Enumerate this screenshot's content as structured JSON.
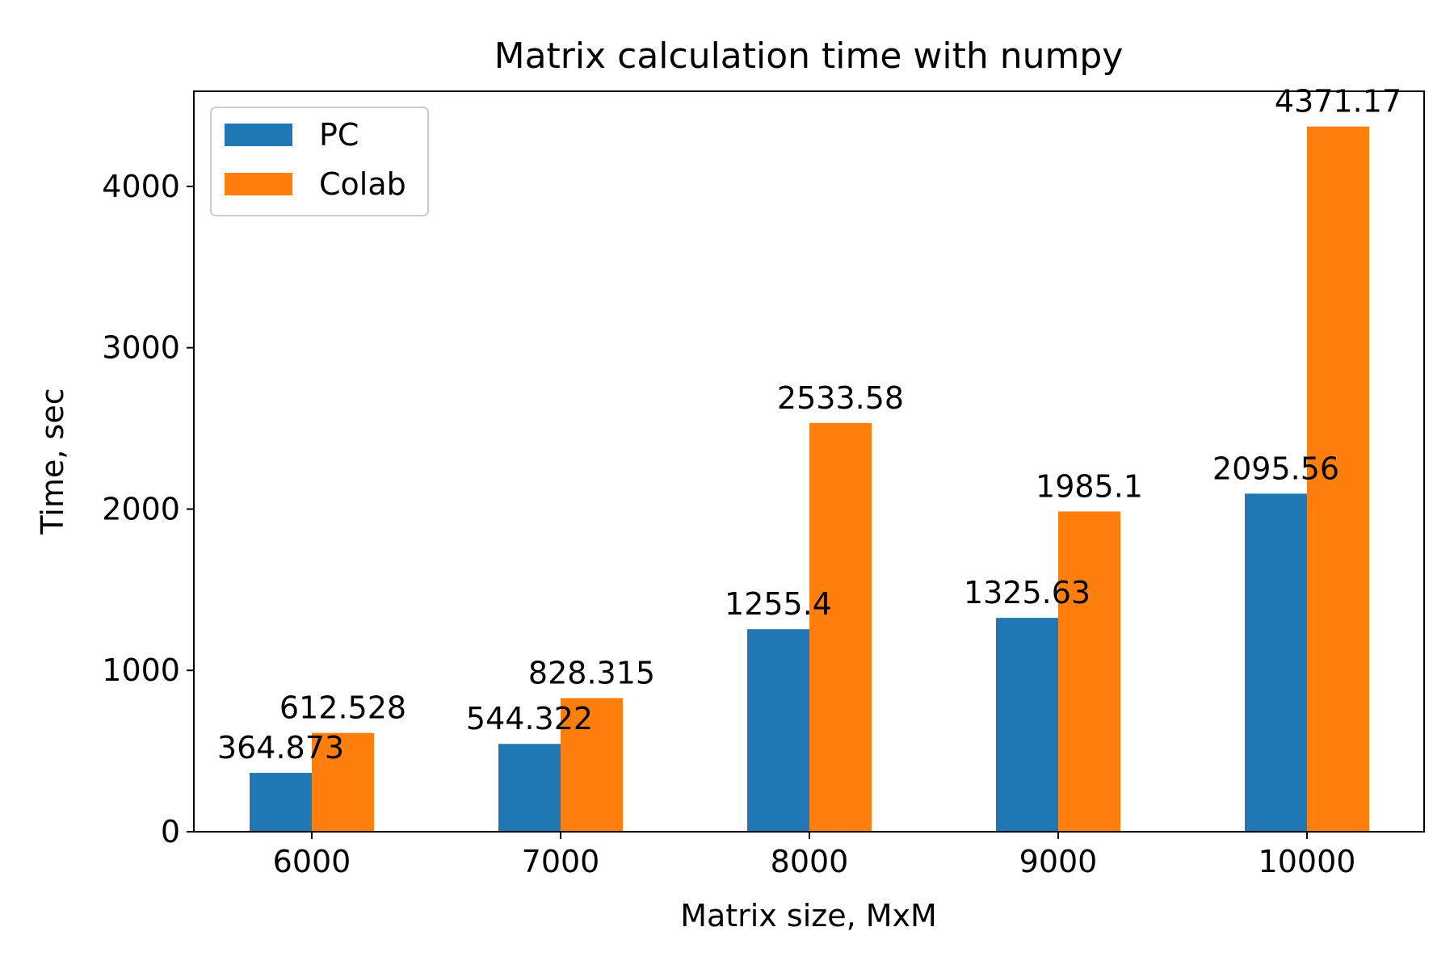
{
  "chart_data": {
    "type": "bar",
    "title": "Matrix calculation time with numpy",
    "xlabel": "Matrix size, MxM",
    "ylabel": "Time, sec",
    "categories": [
      "6000",
      "7000",
      "8000",
      "9000",
      "10000"
    ],
    "series": [
      {
        "name": "PC",
        "color": "#1f77b4",
        "values": [
          364.873,
          544.322,
          1255.4,
          1325.63,
          2095.56
        ],
        "labels": [
          "364.873",
          "544.322",
          "1255.4",
          "1325.63",
          "2095.56"
        ]
      },
      {
        "name": "Colab",
        "color": "#ff7f0e",
        "values": [
          612.528,
          828.315,
          2533.58,
          1985.1,
          4371.17
        ],
        "labels": [
          "612.528",
          "828.315",
          "2533.58",
          "1985.1",
          "4371.17"
        ]
      }
    ],
    "ylim": [
      0,
      4589.73
    ],
    "yticks": [
      0,
      1000,
      2000,
      3000,
      4000
    ],
    "ytick_labels": [
      "0",
      "1000",
      "2000",
      "3000",
      "4000"
    ],
    "legend_position": "top-left",
    "grid": false
  }
}
